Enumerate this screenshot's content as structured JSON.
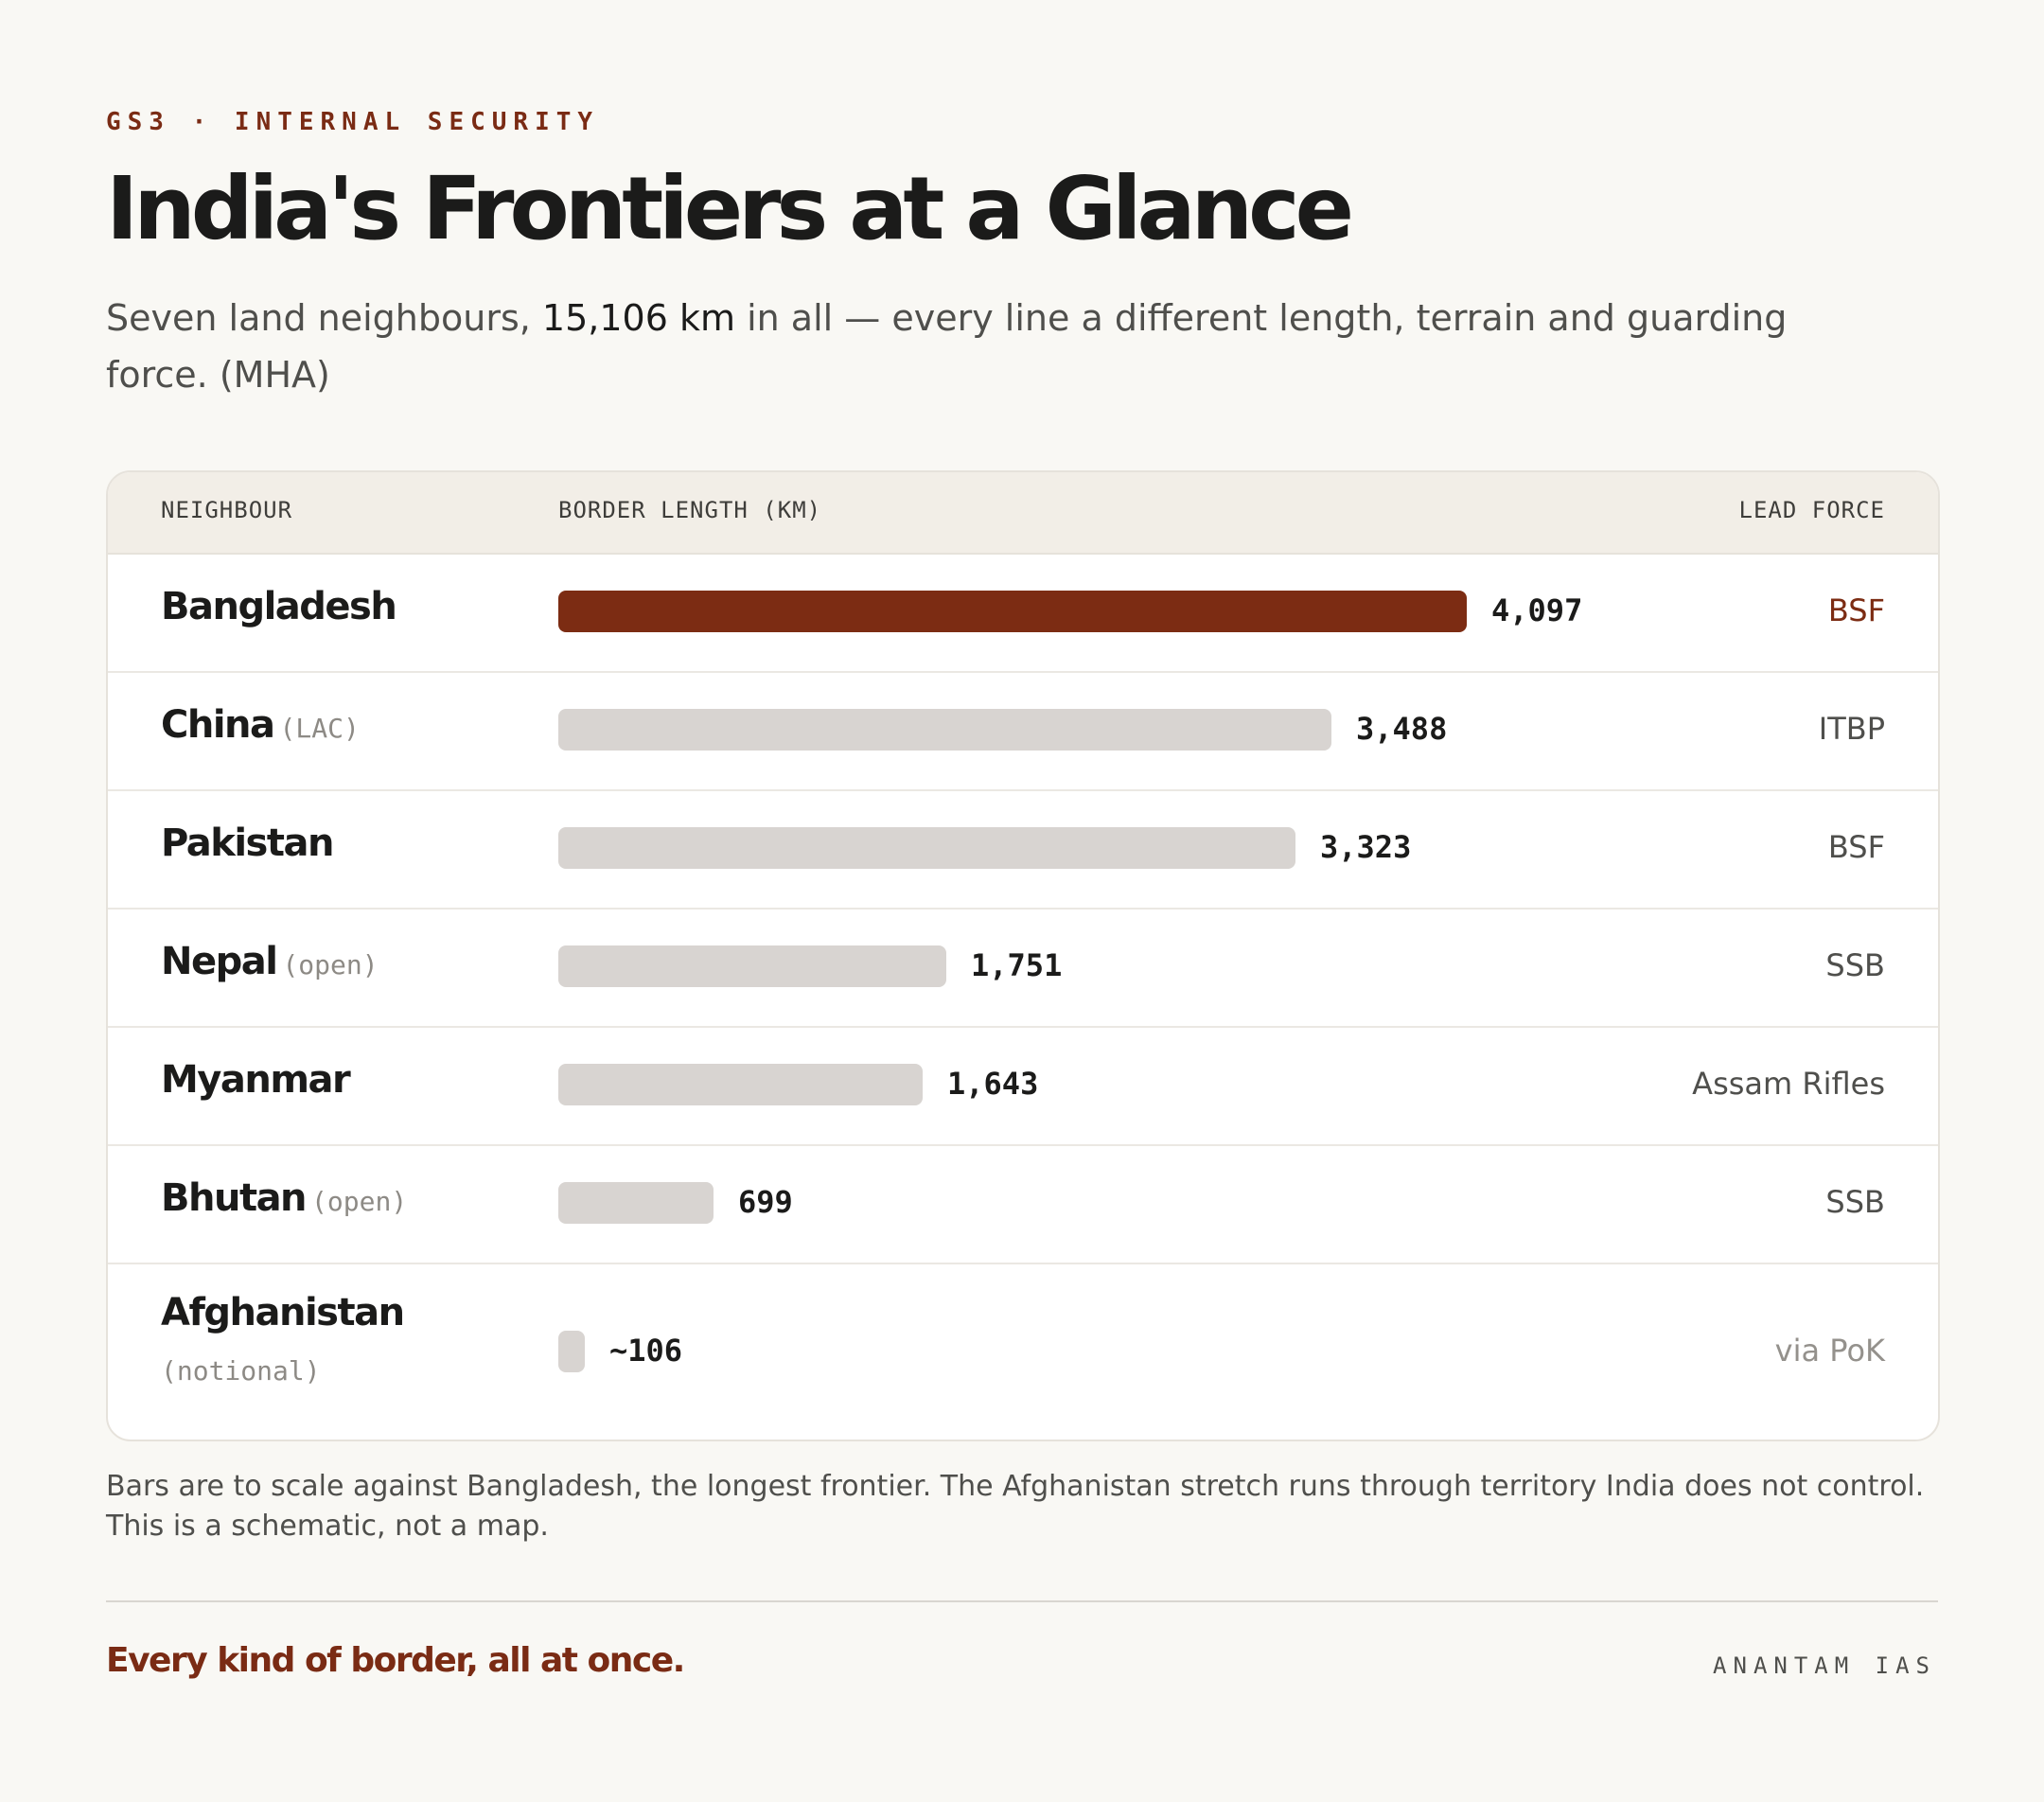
{
  "header": {
    "kicker": "GS3 · INTERNAL SECURITY",
    "title": "India's Frontiers at a Glance",
    "subtitle_pre": "Seven land neighbours, ",
    "subtitle_bold": "15,106 km",
    "subtitle_post": " in all — every line a different length, terrain and guarding force. (MHA)"
  },
  "table": {
    "col_neighbour": "NEIGHBOUR",
    "col_length": "BORDER LENGTH (KM)",
    "col_force": "LEAD FORCE"
  },
  "chart_data": {
    "type": "bar",
    "orientation": "horizontal",
    "xlim": [
      0,
      4097
    ],
    "categories": [
      "Bangladesh",
      "China",
      "Pakistan",
      "Nepal",
      "Myanmar",
      "Bhutan",
      "Afghanistan"
    ],
    "rows": [
      {
        "name": "Bangladesh",
        "note": "",
        "value": 4097,
        "label": "4,097",
        "force": "BSF",
        "highlight": true
      },
      {
        "name": "China",
        "note": "(LAC)",
        "value": 3488,
        "label": "3,488",
        "force": "ITBP"
      },
      {
        "name": "Pakistan",
        "note": "",
        "value": 3323,
        "label": "3,323",
        "force": "BSF"
      },
      {
        "name": "Nepal",
        "note": "(open)",
        "value": 1751,
        "label": "1,751",
        "force": "SSB"
      },
      {
        "name": "Myanmar",
        "note": "",
        "value": 1643,
        "label": "1,643",
        "force": "Assam Rifles"
      },
      {
        "name": "Bhutan",
        "note": "(open)",
        "value": 699,
        "label": "699",
        "force": "SSB"
      },
      {
        "name": "Afghanistan",
        "note": "(notional)",
        "value": 106,
        "label": "~106",
        "force": "via PoK",
        "muted": true
      }
    ],
    "colors": {
      "highlight": "#7c2c13",
      "bar": "#d8d4d1"
    }
  },
  "footnote": "Bars are to scale against Bangladesh, the longest frontier. The Afghanistan stretch runs through territory India does not control. This is a schematic, not a map.",
  "footer": {
    "tagline": "Every kind of border, all at once.",
    "brand": "ANANTAM IAS"
  }
}
